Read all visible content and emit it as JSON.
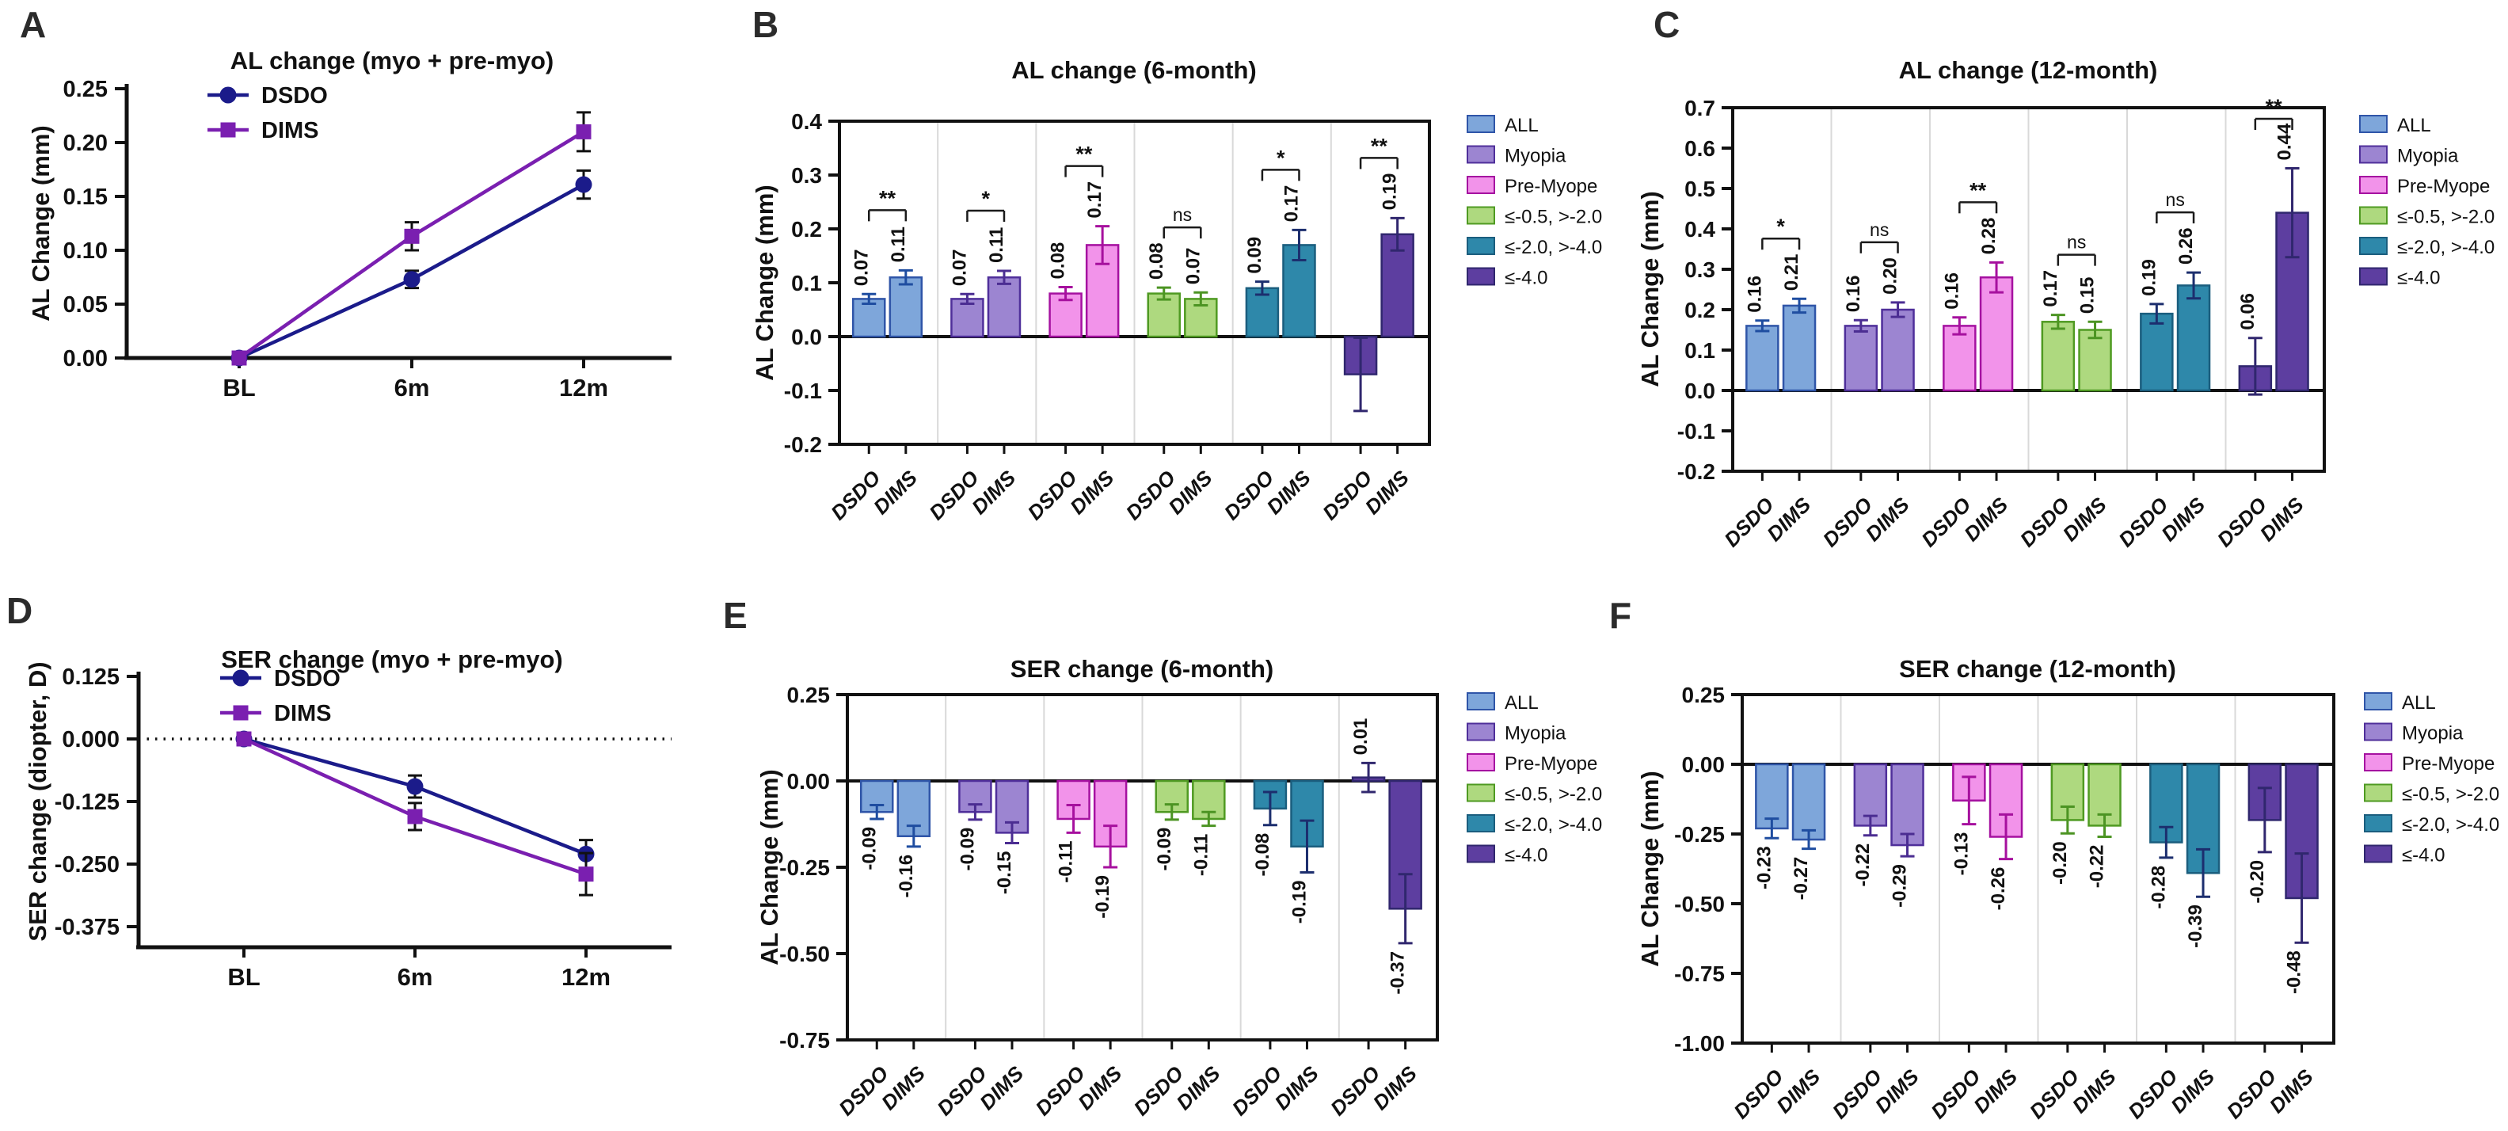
{
  "colors": {
    "dsdo": "#1b1b8a",
    "dims": "#7a1fb0",
    "axis": "#111111",
    "separator": "#d9d9d9",
    "label_text": "#111111",
    "groups": [
      {
        "name": "ALL",
        "fill": "#7ea6da",
        "edge": "#2f55a8",
        "err": "#1f4da0"
      },
      {
        "name": "Myopia",
        "fill": "#9c85d1",
        "edge": "#4f2f9a",
        "err": "#4b2d92"
      },
      {
        "name": "Pre-Myope",
        "fill": "#f293ea",
        "edge": "#a511a0",
        "err": "#a6109e"
      },
      {
        "name": "≤-0.5, >-2.0",
        "fill": "#aed97f",
        "edge": "#4f9a22",
        "err": "#4c9423"
      },
      {
        "name": "≤-2.0, >-4.0",
        "fill": "#2e88aa",
        "edge": "#1b5e7e",
        "err": "#1c2e6e"
      },
      {
        "name": "≤-4.0",
        "fill": "#5d3ea0",
        "edge": "#30276e",
        "err": "#30276e"
      }
    ]
  },
  "chart_data": [
    {
      "id": "A",
      "type": "line",
      "title": "AL change (myo + pre-myo)",
      "ylabel": "AL Change (mm)",
      "x": [
        "BL",
        "6m",
        "12m"
      ],
      "ylim": [
        0,
        0.25
      ],
      "yticks": [
        "0.25",
        "0.20",
        "0.15",
        "0.10",
        "0.05",
        "0.00"
      ],
      "zero_dotted": false,
      "series": [
        {
          "name": "DSDO",
          "marker": "circle",
          "values": [
            0,
            0.073,
            0.161
          ],
          "errors": [
            0,
            0.008,
            0.013
          ]
        },
        {
          "name": "DIMS",
          "marker": "square",
          "values": [
            0,
            0.113,
            0.21
          ],
          "errors": [
            0,
            0.013,
            0.018
          ]
        }
      ]
    },
    {
      "id": "B",
      "type": "bar",
      "title": "AL change (6-month)",
      "ylabel": "AL Change (mm)",
      "ylim": [
        -0.2,
        0.4
      ],
      "yticks": [
        "0.4",
        "0.3",
        "0.2",
        "0.1",
        "0.0",
        "-0.1",
        "-0.2"
      ],
      "bar_labels": [
        "DSDO",
        "DIMS"
      ],
      "legend": [
        "ALL",
        "Myopia",
        "Pre-Myope",
        "≤-0.5, >-2.0",
        "≤-2.0, >-4.0",
        "≤-4.0"
      ],
      "groups": [
        {
          "category": "ALL",
          "values": [
            0.07,
            0.11
          ],
          "labels": [
            "0.07",
            "0.11"
          ],
          "errors": [
            0.009,
            0.013
          ],
          "sig": "**"
        },
        {
          "category": "Myopia",
          "values": [
            0.07,
            0.11
          ],
          "labels": [
            "0.07",
            "0.11"
          ],
          "errors": [
            0.009,
            0.012
          ],
          "sig": "*"
        },
        {
          "category": "Pre-Myope",
          "values": [
            0.08,
            0.17
          ],
          "labels": [
            "0.08",
            "0.17"
          ],
          "errors": [
            0.012,
            0.035
          ],
          "sig": "**"
        },
        {
          "category": "≤-0.5, >-2.0",
          "values": [
            0.08,
            0.07
          ],
          "labels": [
            "0.08",
            "0.07"
          ],
          "errors": [
            0.011,
            0.012
          ],
          "sig": "ns"
        },
        {
          "category": "≤-2.0, >-4.0",
          "values": [
            0.09,
            0.17
          ],
          "labels": [
            "0.09",
            "0.17"
          ],
          "errors": [
            0.012,
            0.028
          ],
          "sig": "*"
        },
        {
          "category": "≤-4.0",
          "values": [
            -0.07,
            0.19
          ],
          "labels": [
            "",
            "0.19"
          ],
          "errors": [
            0.068,
            0.03
          ],
          "sig": "**"
        }
      ]
    },
    {
      "id": "C",
      "type": "bar",
      "title": "AL change (12-month)",
      "ylabel": "AL Change (mm)",
      "ylim": [
        -0.2,
        0.7
      ],
      "yticks": [
        "0.7",
        "0.6",
        "0.5",
        "0.4",
        "0.3",
        "0.2",
        "0.1",
        "0.0",
        "-0.1",
        "-0.2"
      ],
      "bar_labels": [
        "DSDO",
        "DIMS"
      ],
      "legend": [
        "ALL",
        "Myopia",
        "Pre-Myope",
        "≤-0.5, >-2.0",
        "≤-2.0, >-4.0",
        "≤-4.0"
      ],
      "groups": [
        {
          "category": "ALL",
          "values": [
            0.16,
            0.21
          ],
          "labels": [
            "0.16",
            "0.21"
          ],
          "errors": [
            0.013,
            0.017
          ],
          "sig": "*"
        },
        {
          "category": "Myopia",
          "values": [
            0.16,
            0.2
          ],
          "labels": [
            "0.16",
            "0.20"
          ],
          "errors": [
            0.014,
            0.018
          ],
          "sig": "ns"
        },
        {
          "category": "Pre-Myope",
          "values": [
            0.16,
            0.28
          ],
          "labels": [
            "0.16",
            "0.28"
          ],
          "errors": [
            0.021,
            0.037
          ],
          "sig": "**"
        },
        {
          "category": "≤-0.5, >-2.0",
          "values": [
            0.17,
            0.15
          ],
          "labels": [
            "0.17",
            "0.15"
          ],
          "errors": [
            0.017,
            0.02
          ],
          "sig": "ns"
        },
        {
          "category": "≤-2.0, >-4.0",
          "values": [
            0.19,
            0.26
          ],
          "labels": [
            "0.19",
            "0.26"
          ],
          "errors": [
            0.024,
            0.032
          ],
          "sig": "ns"
        },
        {
          "category": "≤-4.0",
          "values": [
            0.06,
            0.44
          ],
          "labels": [
            "0.06",
            "0.44"
          ],
          "errors": [
            0.07,
            0.11
          ],
          "sig": "**"
        }
      ]
    },
    {
      "id": "D",
      "type": "line",
      "title": "SER change (myo + pre-myo)",
      "ylabel": "SER change (diopter, D)",
      "x": [
        "BL",
        "6m",
        "12m"
      ],
      "ylim": [
        -0.375,
        0.125
      ],
      "yticks": [
        "0.125",
        "0.000",
        "-0.125",
        "-0.250",
        "-0.375"
      ],
      "zero_dotted": true,
      "series": [
        {
          "name": "DSDO",
          "marker": "circle",
          "values": [
            0,
            -0.095,
            -0.23
          ],
          "errors": [
            0,
            0.022,
            0.028
          ]
        },
        {
          "name": "DIMS",
          "marker": "square",
          "values": [
            0,
            -0.155,
            -0.27
          ],
          "errors": [
            0,
            0.027,
            0.042
          ]
        }
      ]
    },
    {
      "id": "E",
      "type": "bar",
      "title": "SER change (6-month)",
      "ylabel": "AL Change (mm)",
      "ylim": [
        -0.75,
        0.25
      ],
      "yticks": [
        "0.25",
        "0.00",
        "-0.25",
        "-0.50",
        "-0.75"
      ],
      "bar_labels": [
        "DSDO",
        "DIMS"
      ],
      "legend": [
        "ALL",
        "Myopia",
        "Pre-Myope",
        "≤-0.5, >-2.0",
        "≤-2.0, >-4.0",
        "≤-4.0"
      ],
      "groups": [
        {
          "category": "ALL",
          "values": [
            -0.09,
            -0.16
          ],
          "labels": [
            "-0.09",
            "-0.16"
          ],
          "errors": [
            0.02,
            0.03
          ],
          "sig": null
        },
        {
          "category": "Myopia",
          "values": [
            -0.09,
            -0.15
          ],
          "labels": [
            "-0.09",
            "-0.15"
          ],
          "errors": [
            0.022,
            0.03
          ],
          "sig": null
        },
        {
          "category": "Pre-Myope",
          "values": [
            -0.11,
            -0.19
          ],
          "labels": [
            "-0.11",
            "-0.19"
          ],
          "errors": [
            0.04,
            0.06
          ],
          "sig": null
        },
        {
          "category": "≤-0.5, >-2.0",
          "values": [
            -0.09,
            -0.11
          ],
          "labels": [
            "-0.09",
            "-0.11"
          ],
          "errors": [
            0.022,
            0.02
          ],
          "sig": null
        },
        {
          "category": "≤-2.0, >-4.0",
          "values": [
            -0.08,
            -0.19
          ],
          "labels": [
            "-0.08",
            "-0.19"
          ],
          "errors": [
            0.048,
            0.075
          ],
          "sig": null
        },
        {
          "category": "≤-4.0",
          "values": [
            0.01,
            -0.37
          ],
          "labels": [
            "0.01",
            "-0.37"
          ],
          "errors": [
            0.042,
            0.1
          ],
          "sig": null
        }
      ]
    },
    {
      "id": "F",
      "type": "bar",
      "title": "SER change (12-month)",
      "ylabel": "AL Change (mm)",
      "ylim": [
        -1.0,
        0.25
      ],
      "yticks": [
        "0.25",
        "0.00",
        "-0.25",
        "-0.50",
        "-0.75",
        "-1.00"
      ],
      "bar_labels": [
        "DSDO",
        "DIMS"
      ],
      "legend": [
        "ALL",
        "Myopia",
        "Pre-Myope",
        "≤-0.5, >-2.0",
        "≤-2.0, >-4.0",
        "≤-4.0"
      ],
      "groups": [
        {
          "category": "ALL",
          "values": [
            -0.23,
            -0.27
          ],
          "labels": [
            "-0.23",
            "-0.27"
          ],
          "errors": [
            0.035,
            0.033
          ],
          "sig": null
        },
        {
          "category": "Myopia",
          "values": [
            -0.22,
            -0.29
          ],
          "labels": [
            "-0.22",
            "-0.29"
          ],
          "errors": [
            0.035,
            0.04
          ],
          "sig": null
        },
        {
          "category": "Pre-Myope",
          "values": [
            -0.13,
            -0.26
          ],
          "labels": [
            "-0.13",
            "-0.26"
          ],
          "errors": [
            0.085,
            0.08
          ],
          "sig": null
        },
        {
          "category": "≤-0.5, >-2.0",
          "values": [
            -0.2,
            -0.22
          ],
          "labels": [
            "-0.20",
            "-0.22"
          ],
          "errors": [
            0.048,
            0.04
          ],
          "sig": null
        },
        {
          "category": "≤-2.0, >-4.0",
          "values": [
            -0.28,
            -0.39
          ],
          "labels": [
            "-0.28",
            "-0.39"
          ],
          "errors": [
            0.055,
            0.085
          ],
          "sig": null
        },
        {
          "category": "≤-4.0",
          "values": [
            -0.2,
            -0.48
          ],
          "labels": [
            "-0.20",
            "-0.48"
          ],
          "errors": [
            0.115,
            0.16
          ],
          "sig": null
        }
      ]
    }
  ]
}
